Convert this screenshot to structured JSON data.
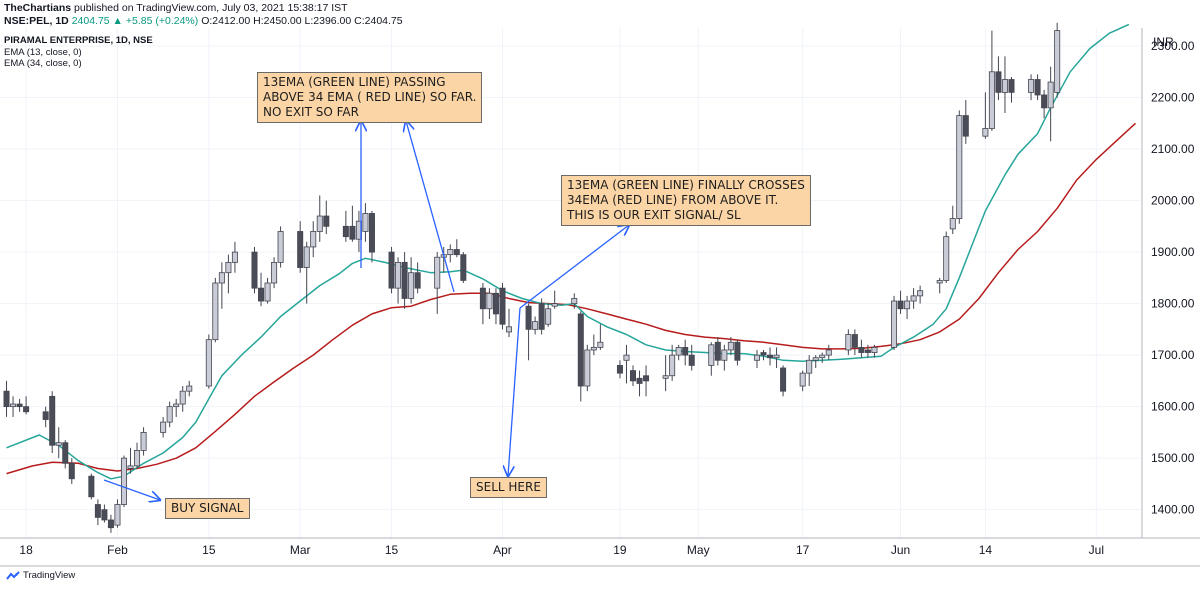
{
  "header": {
    "publisher": "TheChartians",
    "published_text": "published on TradingView.com, July 03, 2021 15:38:17 IST",
    "symbol_line": "NSE:PEL, 1D",
    "change": "2404.75 ▲ +5.85 (+0.24%)",
    "ohlc": "O:2412.00 H:2450.00 L:2396.00 C:2404.75"
  },
  "legend": {
    "title": "PIRAMAL ENTERPRISE, 1D, NSE",
    "ema13": "EMA (13, close, 0)",
    "ema34": "EMA (34, close, 0)"
  },
  "annotations": {
    "note1": [
      "13EMA (GREEN LINE) PASSING",
      "ABOVE 34 EMA ( RED LINE) SO FAR.",
      "NO EXIT SO FAR"
    ],
    "note2": [
      "13EMA (GREEN LINE) FINALLY CROSSES",
      "34EMA (RED LINE) FROM ABOVE IT.",
      "THIS IS OUR EXIT SIGNAL/ SL"
    ],
    "buy": "BUY SIGNAL",
    "sell": "SELL HERE"
  },
  "footer": {
    "brand": "TradingView",
    "logo_icon": "tradingview-logo-icon"
  },
  "colors": {
    "up_candle": "#c9ccd6",
    "down_candle": "#4a4d57",
    "wick": "#434651",
    "ema13": "#26a69a",
    "ema34": "#b71c1c",
    "arrow": "#2962ff",
    "note_bg": "#fbd5a6",
    "grid": "#f0f3fa"
  },
  "chart_data": {
    "type": "candlestick",
    "title": "PIRAMAL ENTERPRISE, 1D, NSE",
    "unit_label": "INR",
    "ylim": [
      1345,
      2335
    ],
    "y_ticks": [
      1400,
      1500,
      1600,
      1700,
      1800,
      1900,
      2000,
      2100,
      2200,
      2300
    ],
    "x_ticks": [
      "18",
      "Feb",
      "15",
      "Mar",
      "15",
      "Apr",
      "19",
      "May",
      "17",
      "Jun",
      "14",
      "Jul"
    ],
    "x_tick_days": [
      -14,
      0,
      14,
      28,
      42,
      59,
      77,
      89,
      105,
      120,
      133,
      150
    ],
    "grid": true,
    "candles": [
      {
        "d": -17,
        "o": 1630,
        "h": 1650,
        "l": 1580,
        "c": 1600
      },
      {
        "d": -16,
        "o": 1600,
        "h": 1620,
        "l": 1580,
        "c": 1605
      },
      {
        "d": -15,
        "o": 1605,
        "h": 1615,
        "l": 1590,
        "c": 1600
      },
      {
        "d": -14,
        "o": 1600,
        "h": 1620,
        "l": 1585,
        "c": 1590
      },
      {
        "d": -11,
        "o": 1590,
        "h": 1600,
        "l": 1560,
        "c": 1575
      },
      {
        "d": -10,
        "o": 1620,
        "h": 1630,
        "l": 1510,
        "c": 1525
      },
      {
        "d": -9,
        "o": 1525,
        "h": 1560,
        "l": 1500,
        "c": 1530
      },
      {
        "d": -8,
        "o": 1530,
        "h": 1535,
        "l": 1480,
        "c": 1490
      },
      {
        "d": -7,
        "o": 1490,
        "h": 1500,
        "l": 1450,
        "c": 1460
      },
      {
        "d": -4,
        "o": 1465,
        "h": 1470,
        "l": 1420,
        "c": 1425
      },
      {
        "d": -3,
        "o": 1410,
        "h": 1420,
        "l": 1370,
        "c": 1385
      },
      {
        "d": -2,
        "o": 1400,
        "h": 1410,
        "l": 1375,
        "c": 1380
      },
      {
        "d": -1,
        "o": 1380,
        "h": 1390,
        "l": 1355,
        "c": 1365
      },
      {
        "d": 0,
        "o": 1370,
        "h": 1420,
        "l": 1365,
        "c": 1410
      },
      {
        "d": 1,
        "o": 1410,
        "h": 1505,
        "l": 1405,
        "c": 1500
      },
      {
        "d": 2,
        "o": 1480,
        "h": 1520,
        "l": 1470,
        "c": 1485
      },
      {
        "d": 3,
        "o": 1485,
        "h": 1530,
        "l": 1480,
        "c": 1515
      },
      {
        "d": 4,
        "o": 1515,
        "h": 1560,
        "l": 1505,
        "c": 1550
      },
      {
        "d": 7,
        "o": 1550,
        "h": 1580,
        "l": 1540,
        "c": 1570
      },
      {
        "d": 8,
        "o": 1570,
        "h": 1610,
        "l": 1560,
        "c": 1600
      },
      {
        "d": 9,
        "o": 1600,
        "h": 1615,
        "l": 1580,
        "c": 1605
      },
      {
        "d": 10,
        "o": 1605,
        "h": 1640,
        "l": 1590,
        "c": 1630
      },
      {
        "d": 11,
        "o": 1630,
        "h": 1650,
        "l": 1620,
        "c": 1640
      },
      {
        "d": 14,
        "o": 1640,
        "h": 1740,
        "l": 1635,
        "c": 1730
      },
      {
        "d": 15,
        "o": 1730,
        "h": 1850,
        "l": 1725,
        "c": 1840
      },
      {
        "d": 16,
        "o": 1840,
        "h": 1880,
        "l": 1790,
        "c": 1860
      },
      {
        "d": 17,
        "o": 1860,
        "h": 1895,
        "l": 1820,
        "c": 1880
      },
      {
        "d": 18,
        "o": 1880,
        "h": 1920,
        "l": 1860,
        "c": 1900
      },
      {
        "d": 21,
        "o": 1900,
        "h": 1910,
        "l": 1820,
        "c": 1830
      },
      {
        "d": 22,
        "o": 1830,
        "h": 1860,
        "l": 1795,
        "c": 1805
      },
      {
        "d": 23,
        "o": 1805,
        "h": 1850,
        "l": 1800,
        "c": 1840
      },
      {
        "d": 24,
        "o": 1840,
        "h": 1890,
        "l": 1830,
        "c": 1880
      },
      {
        "d": 25,
        "o": 1880,
        "h": 1950,
        "l": 1870,
        "c": 1940
      },
      {
        "d": 28,
        "o": 1940,
        "h": 1960,
        "l": 1860,
        "c": 1870
      },
      {
        "d": 29,
        "o": 1870,
        "h": 1920,
        "l": 1800,
        "c": 1910
      },
      {
        "d": 30,
        "o": 1910,
        "h": 1960,
        "l": 1890,
        "c": 1940
      },
      {
        "d": 31,
        "o": 1940,
        "h": 2010,
        "l": 1920,
        "c": 1970
      },
      {
        "d": 32,
        "o": 1970,
        "h": 2000,
        "l": 1935,
        "c": 1950
      },
      {
        "d": 35,
        "o": 1950,
        "h": 1980,
        "l": 1920,
        "c": 1930
      },
      {
        "d": 36,
        "o": 1950,
        "h": 1990,
        "l": 1920,
        "c": 1925
      },
      {
        "d": 37,
        "o": 1925,
        "h": 1980,
        "l": 1900,
        "c": 1960
      },
      {
        "d": 38,
        "o": 1940,
        "h": 1995,
        "l": 1920,
        "c": 1975
      },
      {
        "d": 39,
        "o": 1975,
        "h": 1980,
        "l": 1880,
        "c": 1900
      },
      {
        "d": 42,
        "o": 1900,
        "h": 1910,
        "l": 1820,
        "c": 1830
      },
      {
        "d": 43,
        "o": 1830,
        "h": 1890,
        "l": 1800,
        "c": 1880
      },
      {
        "d": 44,
        "o": 1880,
        "h": 1900,
        "l": 1790,
        "c": 1810
      },
      {
        "d": 45,
        "o": 1810,
        "h": 1890,
        "l": 1800,
        "c": 1860
      },
      {
        "d": 46,
        "o": 1860,
        "h": 1880,
        "l": 1820,
        "c": 1830
      },
      {
        "d": 49,
        "o": 1830,
        "h": 1900,
        "l": 1780,
        "c": 1890
      },
      {
        "d": 50,
        "o": 1890,
        "h": 1910,
        "l": 1860,
        "c": 1895
      },
      {
        "d": 51,
        "o": 1895,
        "h": 1915,
        "l": 1880,
        "c": 1905
      },
      {
        "d": 52,
        "o": 1905,
        "h": 1925,
        "l": 1890,
        "c": 1895
      },
      {
        "d": 53,
        "o": 1895,
        "h": 1900,
        "l": 1840,
        "c": 1845
      },
      {
        "d": 56,
        "o": 1830,
        "h": 1840,
        "l": 1760,
        "c": 1790
      },
      {
        "d": 57,
        "o": 1790,
        "h": 1830,
        "l": 1770,
        "c": 1820
      },
      {
        "d": 58,
        "o": 1820,
        "h": 1830,
        "l": 1760,
        "c": 1780
      },
      {
        "d": 59,
        "o": 1830,
        "h": 1840,
        "l": 1750,
        "c": 1760
      },
      {
        "d": 60,
        "o": 1745,
        "h": 1790,
        "l": 1735,
        "c": 1755
      },
      {
        "d": 63,
        "o": 1795,
        "h": 1800,
        "l": 1690,
        "c": 1750
      },
      {
        "d": 64,
        "o": 1750,
        "h": 1775,
        "l": 1740,
        "c": 1765
      },
      {
        "d": 65,
        "o": 1800,
        "h": 1810,
        "l": 1740,
        "c": 1750
      },
      {
        "d": 66,
        "o": 1760,
        "h": 1800,
        "l": 1755,
        "c": 1790
      },
      {
        "d": 67,
        "o": 1795,
        "h": 1825,
        "l": 1790,
        "c": 1800
      },
      {
        "d": 70,
        "o": 1800,
        "h": 1820,
        "l": 1790,
        "c": 1810
      },
      {
        "d": 71,
        "o": 1780,
        "h": 1785,
        "l": 1610,
        "c": 1640
      },
      {
        "d": 72,
        "o": 1640,
        "h": 1720,
        "l": 1630,
        "c": 1710
      },
      {
        "d": 73,
        "o": 1710,
        "h": 1740,
        "l": 1700,
        "c": 1715
      },
      {
        "d": 74,
        "o": 1715,
        "h": 1760,
        "l": 1710,
        "c": 1725
      },
      {
        "d": 77,
        "o": 1680,
        "h": 1690,
        "l": 1655,
        "c": 1665
      },
      {
        "d": 78,
        "o": 1690,
        "h": 1720,
        "l": 1645,
        "c": 1700
      },
      {
        "d": 79,
        "o": 1670,
        "h": 1680,
        "l": 1640,
        "c": 1650
      },
      {
        "d": 80,
        "o": 1655,
        "h": 1670,
        "l": 1620,
        "c": 1645
      },
      {
        "d": 81,
        "o": 1660,
        "h": 1680,
        "l": 1620,
        "c": 1650
      },
      {
        "d": 84,
        "o": 1655,
        "h": 1700,
        "l": 1630,
        "c": 1660
      },
      {
        "d": 85,
        "o": 1660,
        "h": 1720,
        "l": 1650,
        "c": 1700
      },
      {
        "d": 86,
        "o": 1700,
        "h": 1720,
        "l": 1690,
        "c": 1715
      },
      {
        "d": 87,
        "o": 1715,
        "h": 1730,
        "l": 1680,
        "c": 1700
      },
      {
        "d": 88,
        "o": 1700,
        "h": 1720,
        "l": 1670,
        "c": 1680
      },
      {
        "d": 91,
        "o": 1680,
        "h": 1725,
        "l": 1660,
        "c": 1720
      },
      {
        "d": 92,
        "o": 1725,
        "h": 1735,
        "l": 1680,
        "c": 1690
      },
      {
        "d": 93,
        "o": 1690,
        "h": 1720,
        "l": 1670,
        "c": 1710
      },
      {
        "d": 94,
        "o": 1710,
        "h": 1735,
        "l": 1700,
        "c": 1725
      },
      {
        "d": 95,
        "o": 1725,
        "h": 1730,
        "l": 1680,
        "c": 1690
      },
      {
        "d": 98,
        "o": 1690,
        "h": 1710,
        "l": 1675,
        "c": 1700
      },
      {
        "d": 99,
        "o": 1705,
        "h": 1710,
        "l": 1690,
        "c": 1700
      },
      {
        "d": 100,
        "o": 1700,
        "h": 1715,
        "l": 1680,
        "c": 1695
      },
      {
        "d": 101,
        "o": 1695,
        "h": 1715,
        "l": 1675,
        "c": 1700
      },
      {
        "d": 102,
        "o": 1675,
        "h": 1680,
        "l": 1620,
        "c": 1630
      },
      {
        "d": 105,
        "o": 1640,
        "h": 1670,
        "l": 1630,
        "c": 1665
      },
      {
        "d": 106,
        "o": 1665,
        "h": 1700,
        "l": 1640,
        "c": 1690
      },
      {
        "d": 107,
        "o": 1690,
        "h": 1700,
        "l": 1675,
        "c": 1695
      },
      {
        "d": 108,
        "o": 1695,
        "h": 1705,
        "l": 1685,
        "c": 1700
      },
      {
        "d": 109,
        "o": 1700,
        "h": 1720,
        "l": 1690,
        "c": 1710
      },
      {
        "d": 112,
        "o": 1710,
        "h": 1750,
        "l": 1700,
        "c": 1740
      },
      {
        "d": 113,
        "o": 1740,
        "h": 1750,
        "l": 1700,
        "c": 1715
      },
      {
        "d": 114,
        "o": 1715,
        "h": 1730,
        "l": 1695,
        "c": 1705
      },
      {
        "d": 115,
        "o": 1710,
        "h": 1720,
        "l": 1695,
        "c": 1705
      },
      {
        "d": 116,
        "o": 1705,
        "h": 1720,
        "l": 1695,
        "c": 1715
      },
      {
        "d": 119,
        "o": 1715,
        "h": 1815,
        "l": 1710,
        "c": 1805
      },
      {
        "d": 120,
        "o": 1805,
        "h": 1825,
        "l": 1780,
        "c": 1790
      },
      {
        "d": 121,
        "o": 1790,
        "h": 1815,
        "l": 1770,
        "c": 1805
      },
      {
        "d": 122,
        "o": 1805,
        "h": 1830,
        "l": 1790,
        "c": 1815
      },
      {
        "d": 123,
        "o": 1815,
        "h": 1835,
        "l": 1800,
        "c": 1825
      },
      {
        "d": 126,
        "o": 1840,
        "h": 1850,
        "l": 1820,
        "c": 1845
      },
      {
        "d": 127,
        "o": 1845,
        "h": 1940,
        "l": 1840,
        "c": 1930
      },
      {
        "d": 128,
        "o": 1945,
        "h": 1990,
        "l": 1935,
        "c": 1965
      },
      {
        "d": 129,
        "o": 1965,
        "h": 2175,
        "l": 1955,
        "c": 2165
      },
      {
        "d": 130,
        "o": 2165,
        "h": 2195,
        "l": 2110,
        "c": 2125
      },
      {
        "d": 133,
        "o": 2125,
        "h": 2210,
        "l": 2120,
        "c": 2140
      },
      {
        "d": 134,
        "o": 2140,
        "h": 2330,
        "l": 2135,
        "c": 2250
      },
      {
        "d": 135,
        "o": 2250,
        "h": 2280,
        "l": 2195,
        "c": 2210
      },
      {
        "d": 136,
        "o": 2210,
        "h": 2280,
        "l": 2170,
        "c": 2235
      },
      {
        "d": 137,
        "o": 2235,
        "h": 2240,
        "l": 2190,
        "c": 2210
      },
      {
        "d": 140,
        "o": 2210,
        "h": 2245,
        "l": 2195,
        "c": 2235
      },
      {
        "d": 141,
        "o": 2235,
        "h": 2245,
        "l": 2195,
        "c": 2205
      },
      {
        "d": 142,
        "o": 2205,
        "h": 2215,
        "l": 2160,
        "c": 2180
      },
      {
        "d": 143,
        "o": 2180,
        "h": 2260,
        "l": 2115,
        "c": 2230
      },
      {
        "d": 144,
        "o": 2210,
        "h": 2345,
        "l": 2200,
        "c": 2330
      }
    ],
    "ema13": [
      [
        -17,
        1520
      ],
      [
        -12,
        1545
      ],
      [
        -9,
        1525
      ],
      [
        -6,
        1495
      ],
      [
        -3,
        1472
      ],
      [
        -1,
        1460
      ],
      [
        1,
        1465
      ],
      [
        4,
        1490
      ],
      [
        7,
        1510
      ],
      [
        10,
        1540
      ],
      [
        12,
        1570
      ],
      [
        14,
        1615
      ],
      [
        16,
        1660
      ],
      [
        19,
        1700
      ],
      [
        22,
        1735
      ],
      [
        25,
        1775
      ],
      [
        28,
        1805
      ],
      [
        31,
        1835
      ],
      [
        34,
        1858
      ],
      [
        36,
        1878
      ],
      [
        38,
        1888
      ],
      [
        41,
        1880
      ],
      [
        44,
        1870
      ],
      [
        48,
        1860
      ],
      [
        51,
        1862
      ],
      [
        53,
        1865
      ],
      [
        56,
        1848
      ],
      [
        59,
        1825
      ],
      [
        62,
        1810
      ],
      [
        65,
        1800
      ],
      [
        68,
        1797
      ],
      [
        70,
        1800
      ],
      [
        72,
        1775
      ],
      [
        75,
        1755
      ],
      [
        78,
        1740
      ],
      [
        81,
        1720
      ],
      [
        84,
        1710
      ],
      [
        87,
        1707
      ],
      [
        90,
        1705
      ],
      [
        93,
        1703
      ],
      [
        96,
        1703
      ],
      [
        99,
        1698
      ],
      [
        102,
        1690
      ],
      [
        105,
        1688
      ],
      [
        108,
        1690
      ],
      [
        111,
        1692
      ],
      [
        114,
        1695
      ],
      [
        117,
        1698
      ],
      [
        119,
        1715
      ],
      [
        122,
        1735
      ],
      [
        125,
        1760
      ],
      [
        127,
        1790
      ],
      [
        129,
        1850
      ],
      [
        131,
        1915
      ],
      [
        133,
        1980
      ],
      [
        136,
        2050
      ],
      [
        138,
        2090
      ],
      [
        141,
        2130
      ],
      [
        143,
        2180
      ],
      [
        146,
        2250
      ],
      [
        149,
        2295
      ],
      [
        152,
        2325
      ],
      [
        155,
        2342
      ]
    ],
    "ema34": [
      [
        -17,
        1470
      ],
      [
        -13,
        1485
      ],
      [
        -10,
        1492
      ],
      [
        -6,
        1490
      ],
      [
        -3,
        1480
      ],
      [
        0,
        1475
      ],
      [
        3,
        1480
      ],
      [
        6,
        1488
      ],
      [
        9,
        1500
      ],
      [
        12,
        1520
      ],
      [
        15,
        1552
      ],
      [
        18,
        1585
      ],
      [
        21,
        1620
      ],
      [
        24,
        1648
      ],
      [
        27,
        1675
      ],
      [
        30,
        1700
      ],
      [
        33,
        1730
      ],
      [
        36,
        1758
      ],
      [
        39,
        1780
      ],
      [
        42,
        1792
      ],
      [
        45,
        1795
      ],
      [
        48,
        1808
      ],
      [
        51,
        1818
      ],
      [
        54,
        1820
      ],
      [
        57,
        1820
      ],
      [
        60,
        1810
      ],
      [
        63,
        1802
      ],
      [
        66,
        1800
      ],
      [
        69,
        1798
      ],
      [
        72,
        1790
      ],
      [
        75,
        1780
      ],
      [
        78,
        1770
      ],
      [
        81,
        1760
      ],
      [
        84,
        1748
      ],
      [
        87,
        1740
      ],
      [
        90,
        1735
      ],
      [
        93,
        1732
      ],
      [
        96,
        1728
      ],
      [
        99,
        1725
      ],
      [
        102,
        1720
      ],
      [
        105,
        1715
      ],
      [
        108,
        1712
      ],
      [
        111,
        1712
      ],
      [
        114,
        1713
      ],
      [
        117,
        1717
      ],
      [
        120,
        1722
      ],
      [
        123,
        1730
      ],
      [
        126,
        1745
      ],
      [
        129,
        1770
      ],
      [
        132,
        1810
      ],
      [
        135,
        1860
      ],
      [
        138,
        1905
      ],
      [
        141,
        1940
      ],
      [
        144,
        1985
      ],
      [
        147,
        2040
      ],
      [
        150,
        2080
      ],
      [
        153,
        2115
      ],
      [
        156,
        2150
      ]
    ]
  }
}
